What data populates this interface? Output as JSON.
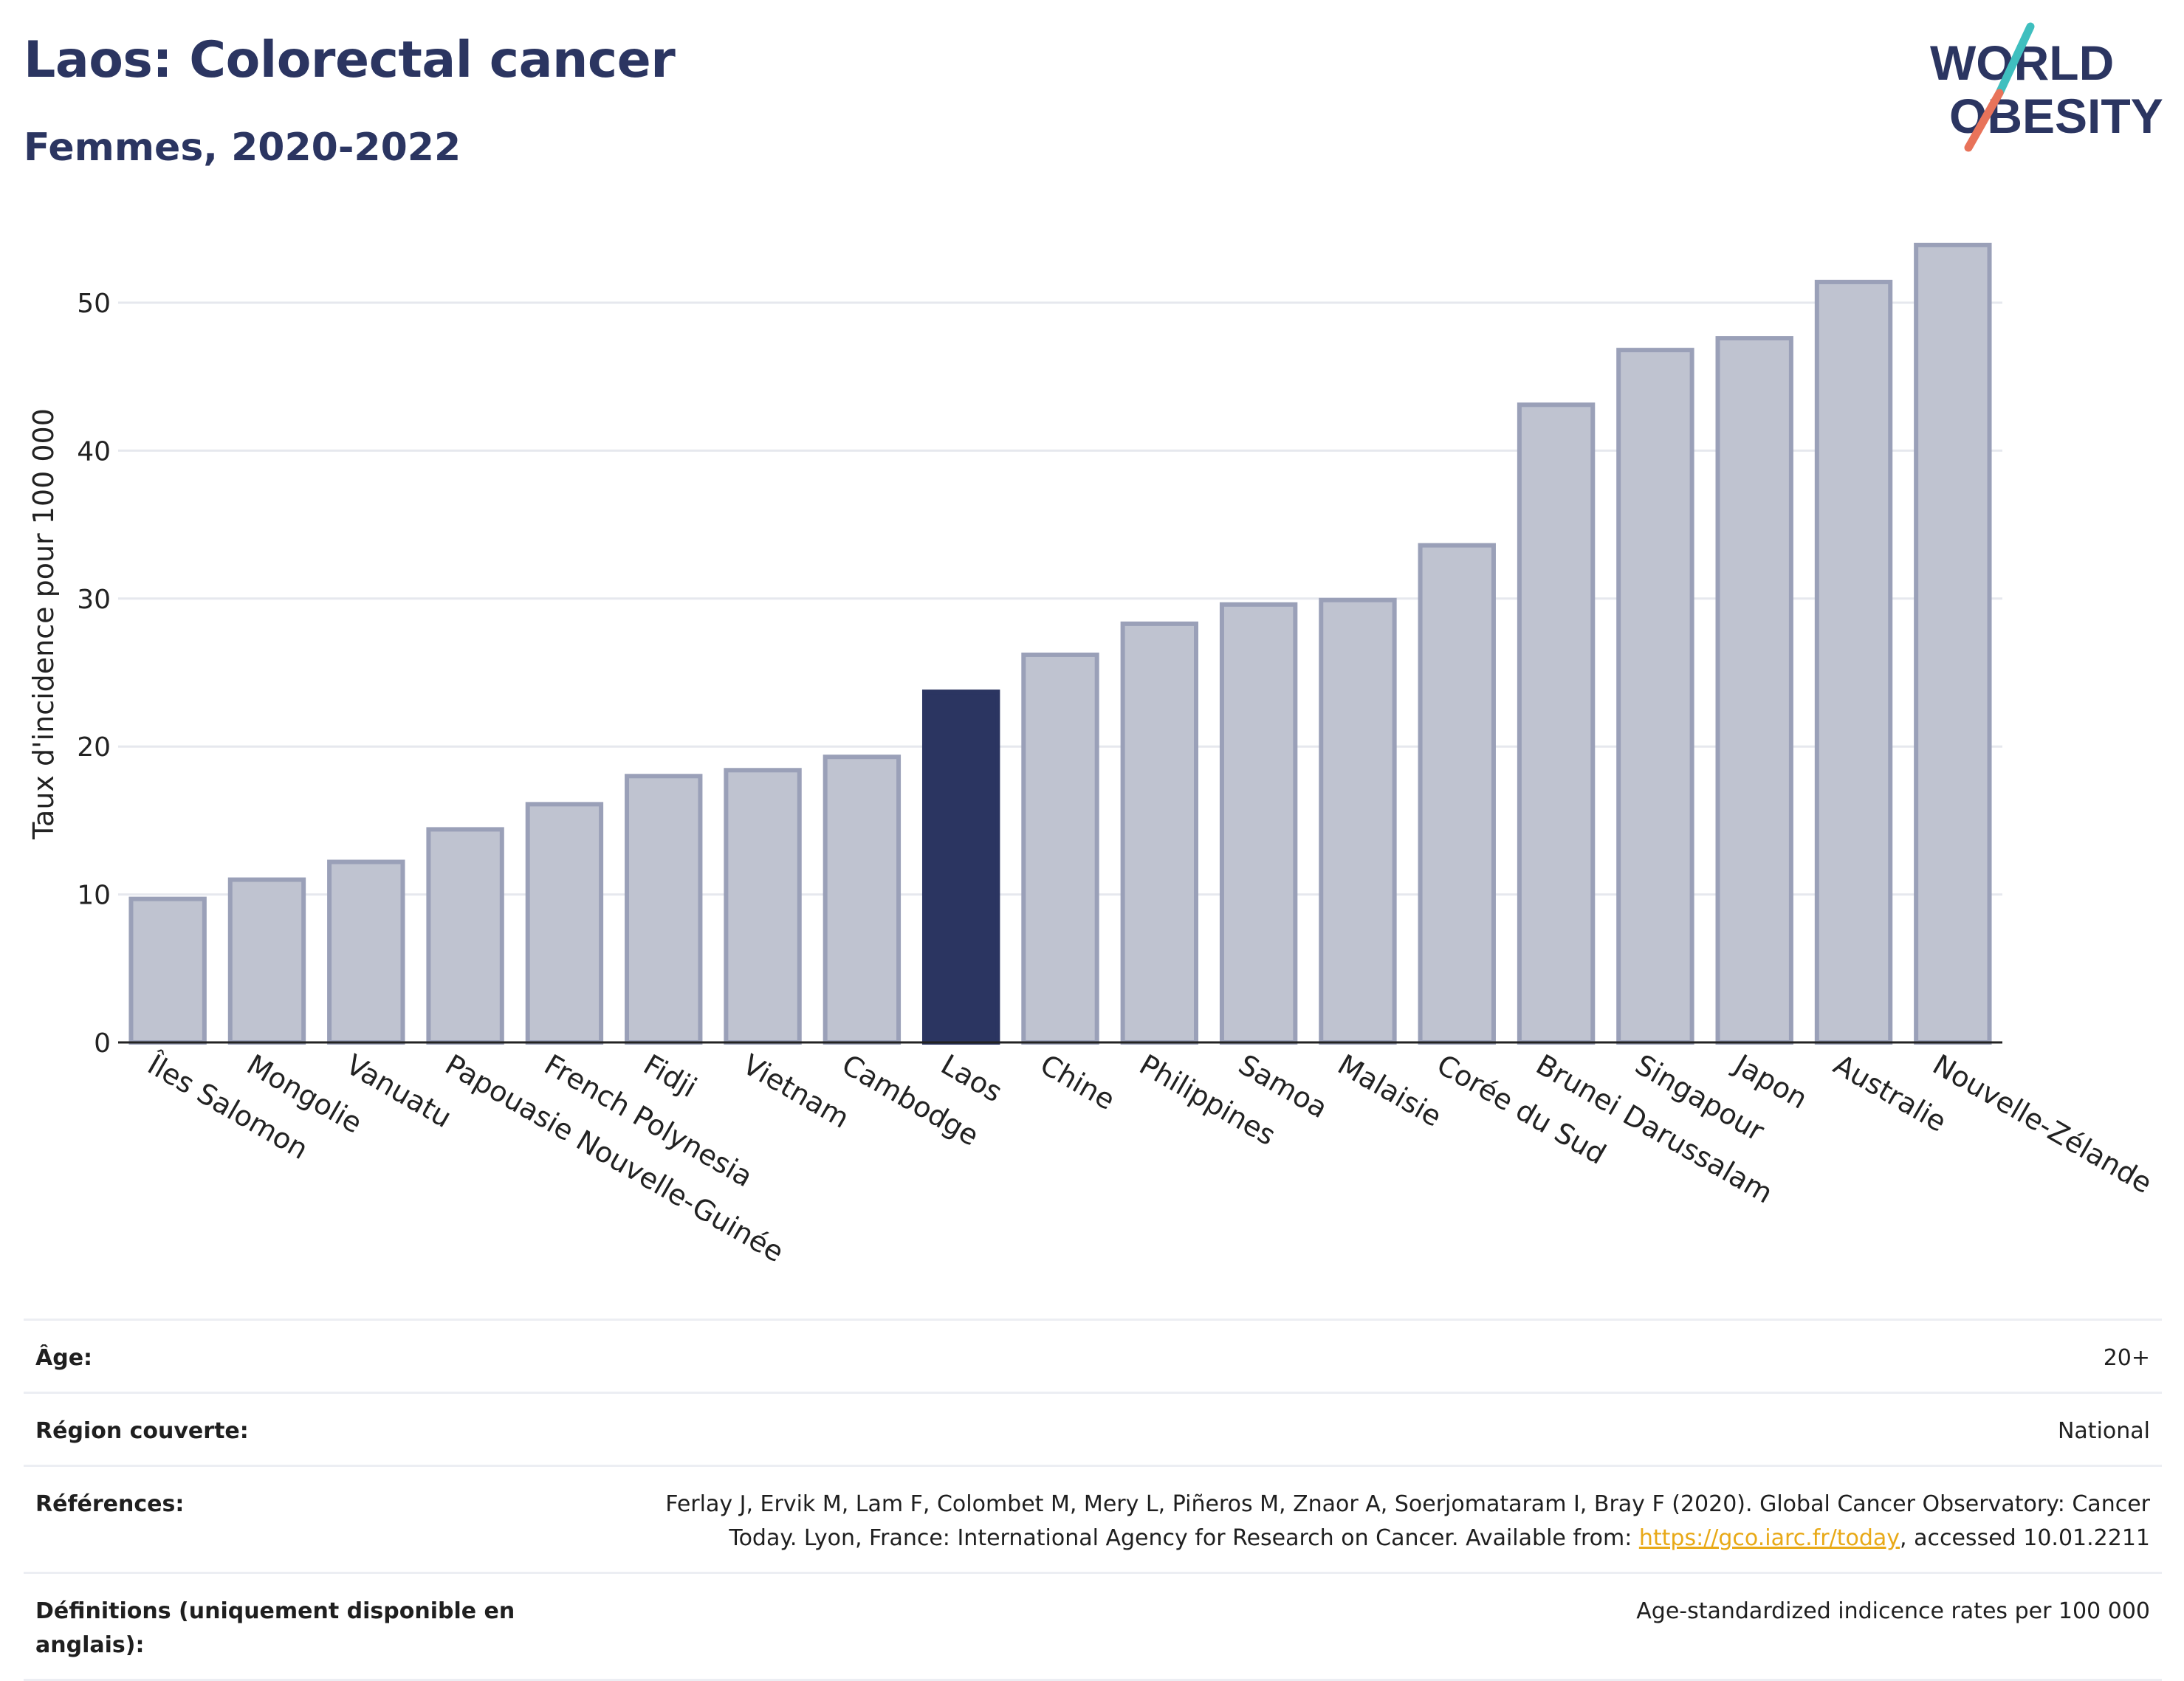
{
  "header": {
    "title": "Laos: Colorectal cancer",
    "subtitle": "Femmes, 2020-2022"
  },
  "logo": {
    "line1": "WORLD",
    "line2": "OBESITY"
  },
  "colors": {
    "highlight": "#2b3561",
    "bar_fill": "#bfc3d0",
    "bar_stroke": "#9aa0b8",
    "grid": "#e6e8ee",
    "logo_text": "#2b3561",
    "logo_slash_top": "#3fbfbf",
    "logo_slash_bottom": "#e8735a"
  },
  "chart_data": {
    "type": "bar",
    "ylabel": "Taux d'incidence pour 100 000",
    "ylim": [
      0,
      56
    ],
    "yticks": [
      0,
      10,
      20,
      30,
      40,
      50
    ],
    "grid": true,
    "highlight": "Laos",
    "categories": [
      "Îles Salomon",
      "Mongolie",
      "Vanuatu",
      "Papouasie Nouvelle-Guinée",
      "French Polynesia",
      "Fidji",
      "Vietnam",
      "Cambodge",
      "Laos",
      "Chine",
      "Philippines",
      "Samoa",
      "Malaisie",
      "Corée du Sud",
      "Brunei Darussalam",
      "Singapour",
      "Japon",
      "Australie",
      "Nouvelle-Zélande"
    ],
    "values": [
      9.7,
      11.0,
      12.2,
      14.4,
      16.1,
      18.0,
      18.4,
      19.3,
      23.7,
      26.2,
      28.3,
      29.6,
      29.9,
      33.6,
      43.1,
      46.8,
      47.6,
      51.4,
      53.9
    ]
  },
  "info": {
    "age_label": "Âge:",
    "age_value": "20+",
    "region_label": "Région couverte:",
    "region_value": "National",
    "ref_label": "Références:",
    "ref_line1": "Ferlay J, Ervik M, Lam F, Colombet M, Mery L, Piñeros M, Znaor A, Soerjomataram I, Bray F (2020). Global Cancer Observatory: Cancer",
    "ref_line2_pre": "Today. Lyon, France: International Agency for Research on Cancer. Available from: ",
    "ref_link": "https://gco.iarc.fr/today",
    "ref_line2_post": ", accessed 10.01.2211",
    "def_label": "Définitions (uniquement disponible en anglais):",
    "def_value": "Age-standardized indicence rates per 100 000"
  }
}
